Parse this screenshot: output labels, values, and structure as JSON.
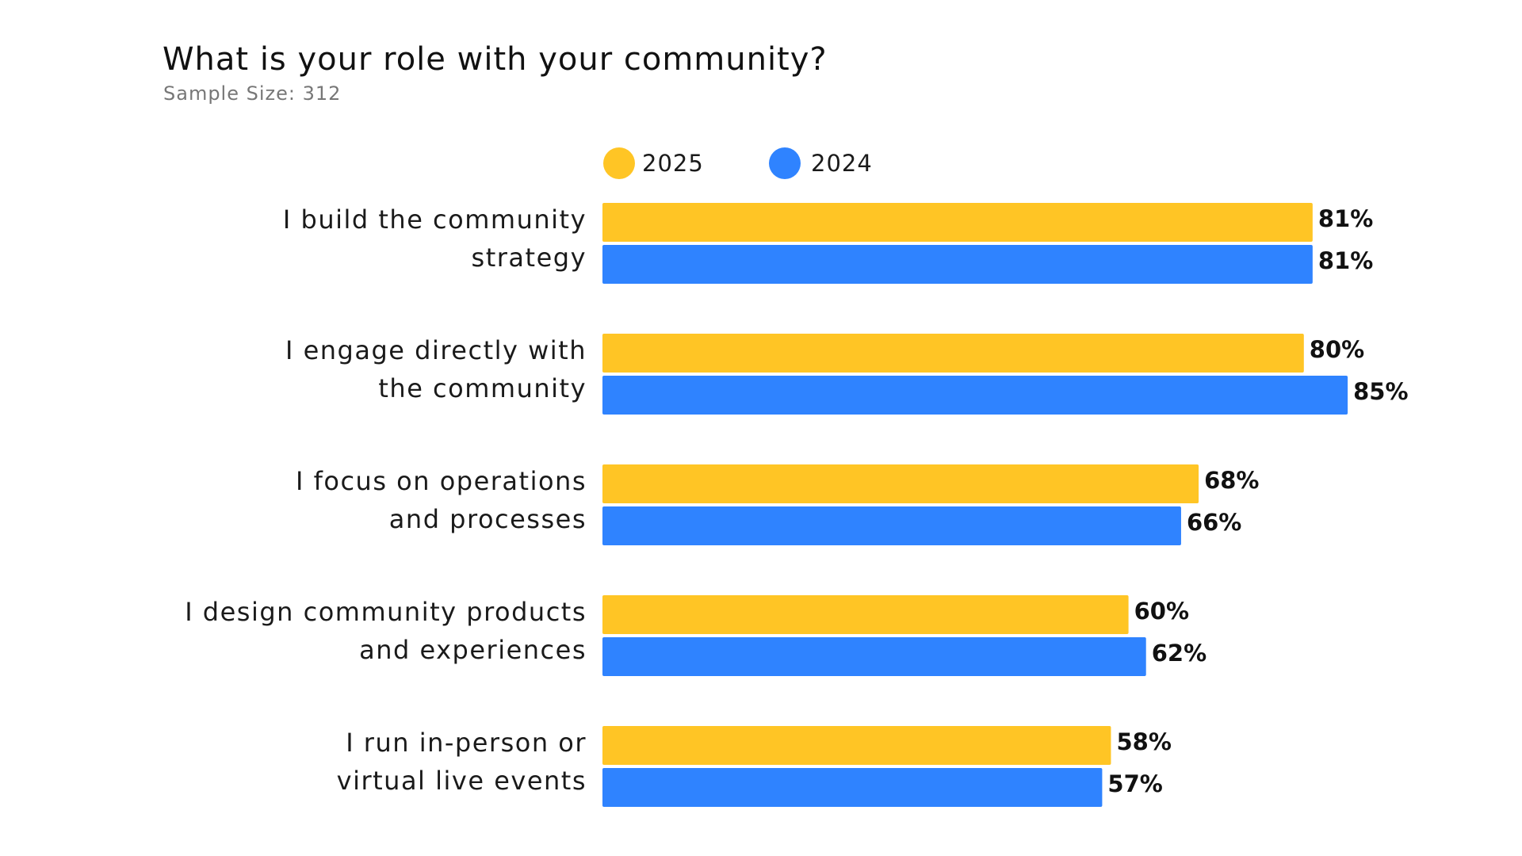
{
  "chart_data": {
    "type": "bar",
    "orientation": "horizontal",
    "title": "What is your role with your community?",
    "subtitle": "Sample Size: 312",
    "categories": [
      [
        "I build the community",
        "strategy"
      ],
      [
        "I engage directly with",
        "the community"
      ],
      [
        "I focus on operations",
        "and processes"
      ],
      [
        "I design community products",
        "and experiences"
      ],
      [
        "I run in-person or",
        "virtual live events"
      ]
    ],
    "series": [
      {
        "name": "2025",
        "color": "#FFC525",
        "values": [
          81,
          80,
          68,
          60,
          58
        ]
      },
      {
        "name": "2024",
        "color": "#2F83FF",
        "values": [
          81,
          85,
          66,
          62,
          57
        ]
      }
    ],
    "value_suffix": "%",
    "xlim": [
      0,
      100
    ],
    "grid": false,
    "legend": "top"
  }
}
